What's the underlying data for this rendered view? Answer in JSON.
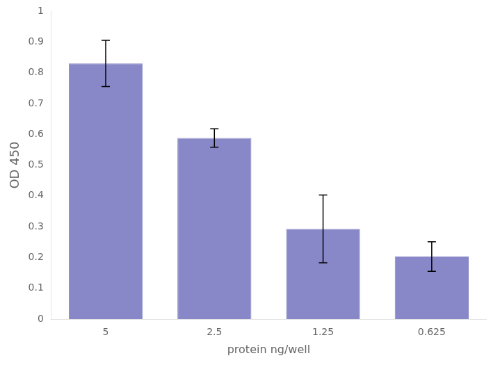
{
  "chart_data": {
    "type": "bar",
    "categories": [
      "5",
      "2.5",
      "1.25",
      "0.625"
    ],
    "values": [
      0.83,
      0.588,
      0.293,
      0.203
    ],
    "errors": [
      0.075,
      0.03,
      0.11,
      0.048
    ],
    "color": "#8888c8",
    "xlabel": "protein ng/well",
    "ylabel": "OD 450",
    "ylim": [
      0,
      1.0
    ],
    "yticks": [
      0,
      0.1,
      0.2,
      0.3,
      0.4,
      0.5,
      0.6,
      0.7,
      0.8,
      0.9,
      1
    ],
    "grid": false
  }
}
